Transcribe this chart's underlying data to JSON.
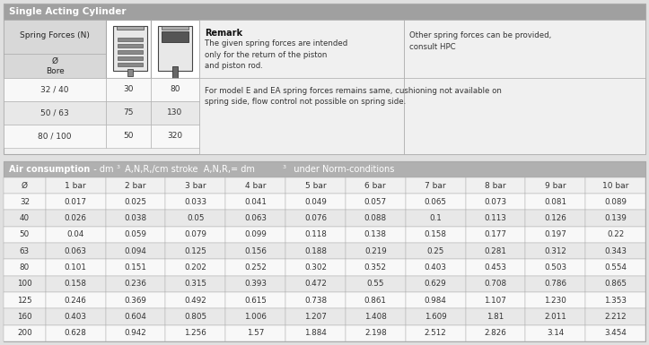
{
  "title1": "Single Acting Cylinder",
  "table1_col1": [
    "32 / 40",
    "50 / 63",
    "80 / 100"
  ],
  "table1_col2": [
    "30",
    "75",
    "50"
  ],
  "table1_col3": [
    "80",
    "130",
    "320"
  ],
  "remark_bold": "Remark",
  "remark_text": "The given spring forces are intended\nonly for the return of the piston\nand piston rod.",
  "other_text": "Other spring forces can be provided,\nconsult HPC",
  "note_text": "For model E and EA spring forces remains same, cushioning not available on\nspring side, flow control not possible on spring side.",
  "title2": "Air consumption  - dm A,N,R,/cm stroke  A,N,R,= dm  under Norm-conditions",
  "table2_headers": [
    "Ø",
    "1 bar",
    "2 bar",
    "3 bar",
    "4 bar",
    "5 bar",
    "6 bar",
    "7 bar",
    "8 bar",
    "9 bar",
    "10 bar"
  ],
  "table2_rows": [
    [
      "32",
      "0.017",
      "0.025",
      "0.033",
      "0.041",
      "0.049",
      "0.057",
      "0.065",
      "0.073",
      "0.081",
      "0.089"
    ],
    [
      "40",
      "0.026",
      "0.038",
      "0.05",
      "0.063",
      "0.076",
      "0.088",
      "0.1",
      "0.113",
      "0.126",
      "0.139"
    ],
    [
      "50",
      "0.04",
      "0.059",
      "0.079",
      "0.099",
      "0.118",
      "0.138",
      "0.158",
      "0.177",
      "0.197",
      "0.22"
    ],
    [
      "63",
      "0.063",
      "0.094",
      "0.125",
      "0.156",
      "0.188",
      "0.219",
      "0.25",
      "0.281",
      "0.312",
      "0.343"
    ],
    [
      "80",
      "0.101",
      "0.151",
      "0.202",
      "0.252",
      "0.302",
      "0.352",
      "0.403",
      "0.453",
      "0.503",
      "0.554"
    ],
    [
      "100",
      "0.158",
      "0.236",
      "0.315",
      "0.393",
      "0.472",
      "0.55",
      "0.629",
      "0.708",
      "0.786",
      "0.865"
    ],
    [
      "125",
      "0.246",
      "0.369",
      "0.492",
      "0.615",
      "0.738",
      "0.861",
      "0.984",
      "1.107",
      "1.230",
      "1.353"
    ],
    [
      "160",
      "0.403",
      "0.604",
      "0.805",
      "1.006",
      "1.207",
      "1.408",
      "1.609",
      "1.81",
      "2.011",
      "2.212"
    ],
    [
      "200",
      "0.628",
      "0.942",
      "1.256",
      "1.57",
      "1.884",
      "2.198",
      "2.512",
      "2.826",
      "3.14",
      "3.454"
    ]
  ],
  "bg_color": "#e0e0e0",
  "title_bg": "#a0a0a0",
  "title_text_color": "#ffffff",
  "table_bg": "#f0f0f0",
  "header_area_bg": "#d8d8d8",
  "icon_bg": "#ffffff",
  "row_odd_bg": "#e8e8e8",
  "row_even_bg": "#f8f8f8",
  "border_color": "#aaaaaa",
  "text_color": "#333333",
  "table2_title_bg": "#b0b0b0",
  "table2_col_header_bg": "#f5f5f5",
  "table2_row_odd": "#e8e8e8",
  "table2_row_even": "#f8f8f8"
}
